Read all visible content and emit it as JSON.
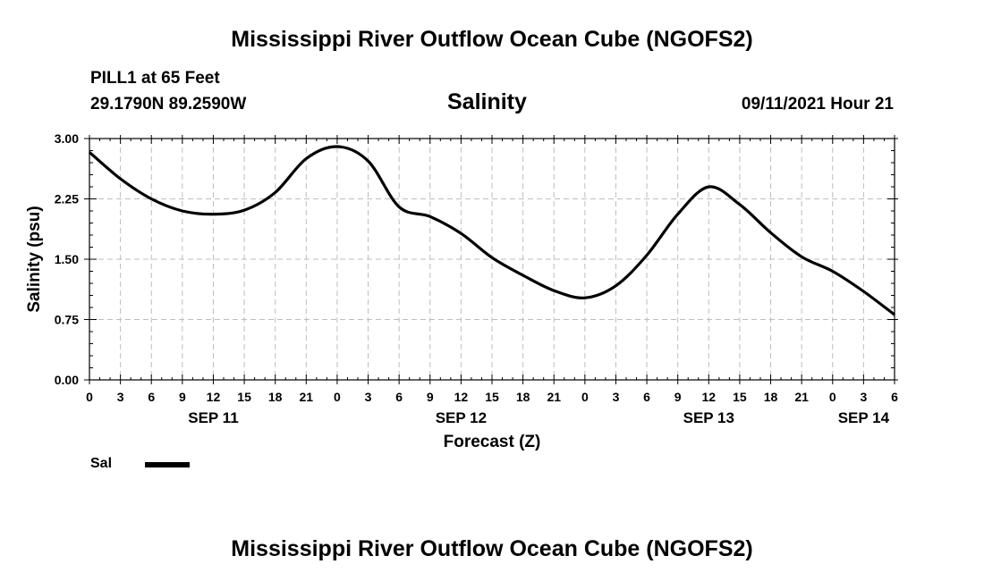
{
  "header": {
    "title_top": "Mississippi River Outflow Ocean Cube (NGOFS2)",
    "title_bottom": "Mississippi River Outflow Ocean Cube (NGOFS2)",
    "station": "PILL1 at 65 Feet",
    "coords": "29.1790N  89.2590W",
    "subtitle": "Salinity",
    "datetime": "09/11/2021 Hour 21"
  },
  "legend": {
    "label": "Sal",
    "color": "#000000"
  },
  "chart_data": {
    "type": "line",
    "title": "Salinity",
    "xlabel": "Forecast (Z)",
    "ylabel": "Salinity (psu)",
    "ylim": [
      0,
      3
    ],
    "xlim": [
      0,
      78
    ],
    "x_unit": "hours from SEP 11 00Z",
    "grid": true,
    "yticks": [
      "0.00",
      "0.75",
      "1.50",
      "2.25",
      "3.00"
    ],
    "ytick_values": [
      0,
      0.75,
      1.5,
      2.25,
      3.0
    ],
    "xticks": [
      "0",
      "3",
      "6",
      "9",
      "12",
      "15",
      "18",
      "21",
      "0",
      "3",
      "6",
      "9",
      "12",
      "15",
      "18",
      "21",
      "0",
      "3",
      "6",
      "9",
      "12",
      "15",
      "18",
      "21",
      "0",
      "3",
      "6"
    ],
    "date_labels": [
      {
        "label": "SEP 11",
        "x": 12
      },
      {
        "label": "SEP 12",
        "x": 36
      },
      {
        "label": "SEP 13",
        "x": 60
      },
      {
        "label": "SEP 14",
        "x": 75
      }
    ],
    "series": [
      {
        "name": "Sal",
        "x": [
          0,
          3,
          6,
          9,
          12,
          15,
          18,
          21,
          24,
          27,
          30,
          33,
          36,
          39,
          42,
          45,
          48,
          51,
          54,
          57,
          60,
          63,
          66,
          69,
          72,
          75,
          78
        ],
        "values": [
          2.83,
          2.5,
          2.25,
          2.1,
          2.06,
          2.11,
          2.33,
          2.75,
          2.9,
          2.72,
          2.15,
          2.03,
          1.82,
          1.52,
          1.3,
          1.11,
          1.02,
          1.17,
          1.55,
          2.06,
          2.4,
          2.18,
          1.83,
          1.53,
          1.35,
          1.1,
          0.81
        ]
      }
    ]
  }
}
